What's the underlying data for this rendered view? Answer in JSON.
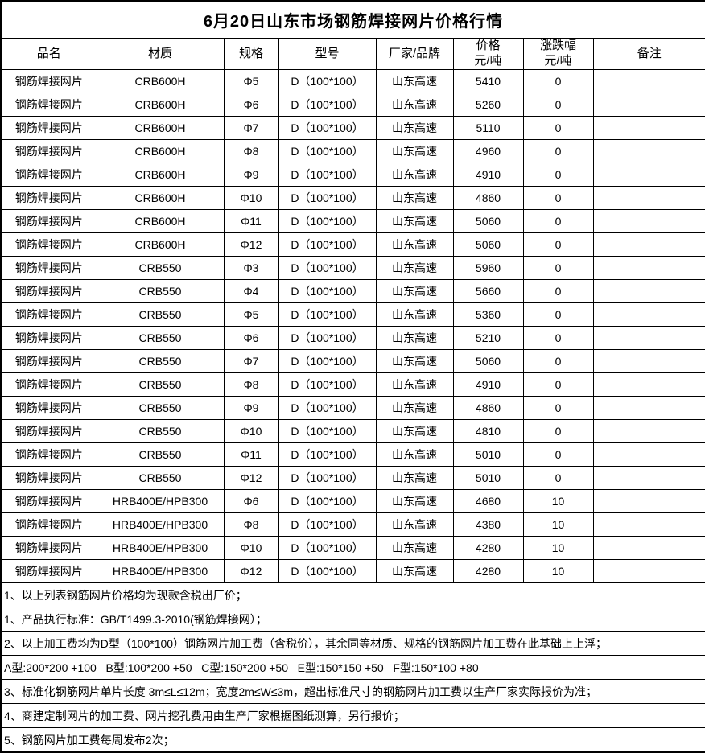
{
  "title": "6月20日山东市场钢筋焊接网片价格行情",
  "table": {
    "columns": [
      {
        "key": "product",
        "label": "品名"
      },
      {
        "key": "material",
        "label": "材质"
      },
      {
        "key": "spec",
        "label": "规格"
      },
      {
        "key": "model",
        "label": "型号"
      },
      {
        "key": "brand",
        "label": "厂家/品牌"
      },
      {
        "key": "price",
        "label": "价格",
        "unit": "元/吨"
      },
      {
        "key": "change",
        "label": "涨跌幅",
        "unit": "元/吨"
      },
      {
        "key": "remark",
        "label": "备注"
      }
    ],
    "rows": [
      {
        "product": "钢筋焊接网片",
        "material": "CRB600H",
        "spec": "Φ5",
        "model": "D（100*100）",
        "brand": "山东高速",
        "price": "5410",
        "change": "0",
        "remark": ""
      },
      {
        "product": "钢筋焊接网片",
        "material": "CRB600H",
        "spec": "Φ6",
        "model": "D（100*100）",
        "brand": "山东高速",
        "price": "5260",
        "change": "0",
        "remark": ""
      },
      {
        "product": "钢筋焊接网片",
        "material": "CRB600H",
        "spec": "Φ7",
        "model": "D（100*100）",
        "brand": "山东高速",
        "price": "5110",
        "change": "0",
        "remark": ""
      },
      {
        "product": "钢筋焊接网片",
        "material": "CRB600H",
        "spec": "Φ8",
        "model": "D（100*100）",
        "brand": "山东高速",
        "price": "4960",
        "change": "0",
        "remark": ""
      },
      {
        "product": "钢筋焊接网片",
        "material": "CRB600H",
        "spec": "Φ9",
        "model": "D（100*100）",
        "brand": "山东高速",
        "price": "4910",
        "change": "0",
        "remark": ""
      },
      {
        "product": "钢筋焊接网片",
        "material": "CRB600H",
        "spec": "Φ10",
        "model": "D（100*100）",
        "brand": "山东高速",
        "price": "4860",
        "change": "0",
        "remark": ""
      },
      {
        "product": "钢筋焊接网片",
        "material": "CRB600H",
        "spec": "Φ11",
        "model": "D（100*100）",
        "brand": "山东高速",
        "price": "5060",
        "change": "0",
        "remark": ""
      },
      {
        "product": "钢筋焊接网片",
        "material": "CRB600H",
        "spec": "Φ12",
        "model": "D（100*100）",
        "brand": "山东高速",
        "price": "5060",
        "change": "0",
        "remark": ""
      },
      {
        "product": "钢筋焊接网片",
        "material": "CRB550",
        "spec": "Φ3",
        "model": "D（100*100）",
        "brand": "山东高速",
        "price": "5960",
        "change": "0",
        "remark": ""
      },
      {
        "product": "钢筋焊接网片",
        "material": "CRB550",
        "spec": "Φ4",
        "model": "D（100*100）",
        "brand": "山东高速",
        "price": "5660",
        "change": "0",
        "remark": ""
      },
      {
        "product": "钢筋焊接网片",
        "material": "CRB550",
        "spec": "Φ5",
        "model": "D（100*100）",
        "brand": "山东高速",
        "price": "5360",
        "change": "0",
        "remark": ""
      },
      {
        "product": "钢筋焊接网片",
        "material": "CRB550",
        "spec": "Φ6",
        "model": "D（100*100）",
        "brand": "山东高速",
        "price": "5210",
        "change": "0",
        "remark": ""
      },
      {
        "product": "钢筋焊接网片",
        "material": "CRB550",
        "spec": "Φ7",
        "model": "D（100*100）",
        "brand": "山东高速",
        "price": "5060",
        "change": "0",
        "remark": ""
      },
      {
        "product": "钢筋焊接网片",
        "material": "CRB550",
        "spec": "Φ8",
        "model": "D（100*100）",
        "brand": "山东高速",
        "price": "4910",
        "change": "0",
        "remark": ""
      },
      {
        "product": "钢筋焊接网片",
        "material": "CRB550",
        "spec": "Φ9",
        "model": "D（100*100）",
        "brand": "山东高速",
        "price": "4860",
        "change": "0",
        "remark": ""
      },
      {
        "product": "钢筋焊接网片",
        "material": "CRB550",
        "spec": "Φ10",
        "model": "D（100*100）",
        "brand": "山东高速",
        "price": "4810",
        "change": "0",
        "remark": ""
      },
      {
        "product": "钢筋焊接网片",
        "material": "CRB550",
        "spec": "Φ11",
        "model": "D（100*100）",
        "brand": "山东高速",
        "price": "5010",
        "change": "0",
        "remark": ""
      },
      {
        "product": "钢筋焊接网片",
        "material": "CRB550",
        "spec": "Φ12",
        "model": "D（100*100）",
        "brand": "山东高速",
        "price": "5010",
        "change": "0",
        "remark": ""
      },
      {
        "product": "钢筋焊接网片",
        "material": "HRB400E/HPB300",
        "spec": "Φ6",
        "model": "D（100*100）",
        "brand": "山东高速",
        "price": "4680",
        "change": "10",
        "remark": ""
      },
      {
        "product": "钢筋焊接网片",
        "material": "HRB400E/HPB300",
        "spec": "Φ8",
        "model": "D（100*100）",
        "brand": "山东高速",
        "price": "4380",
        "change": "10",
        "remark": ""
      },
      {
        "product": "钢筋焊接网片",
        "material": "HRB400E/HPB300",
        "spec": "Φ10",
        "model": "D（100*100）",
        "brand": "山东高速",
        "price": "4280",
        "change": "10",
        "remark": ""
      },
      {
        "product": "钢筋焊接网片",
        "material": "HRB400E/HPB300",
        "spec": "Φ12",
        "model": "D（100*100）",
        "brand": "山东高速",
        "price": "4280",
        "change": "10",
        "remark": ""
      }
    ]
  },
  "notes": [
    "1、以上列表钢筋网片价格均为现款含税出厂价；",
    "1、产品执行标准：GB/T1499.3-2010(钢筋焊接网）；",
    "2、以上加工费均为D型（100*100）钢筋网片加工费（含税价），其余同等材质、规格的钢筋网片加工费在此基础上上浮；",
    "A型:200*200 +100   B型:100*200 +50   C型:150*200 +50   E型:150*150 +50   F型:150*100 +80",
    "3、标准化钢筋网片单片长度 3m≤L≤12m；宽度2m≤W≤3m，超出标准尺寸的钢筋网片加工费以生产厂家实际报价为准；",
    "4、商建定制网片的加工费、网片挖孔费用由生产厂家根据图纸测算，另行报价；",
    "5、钢筋网片加工费每周发布2次；"
  ]
}
